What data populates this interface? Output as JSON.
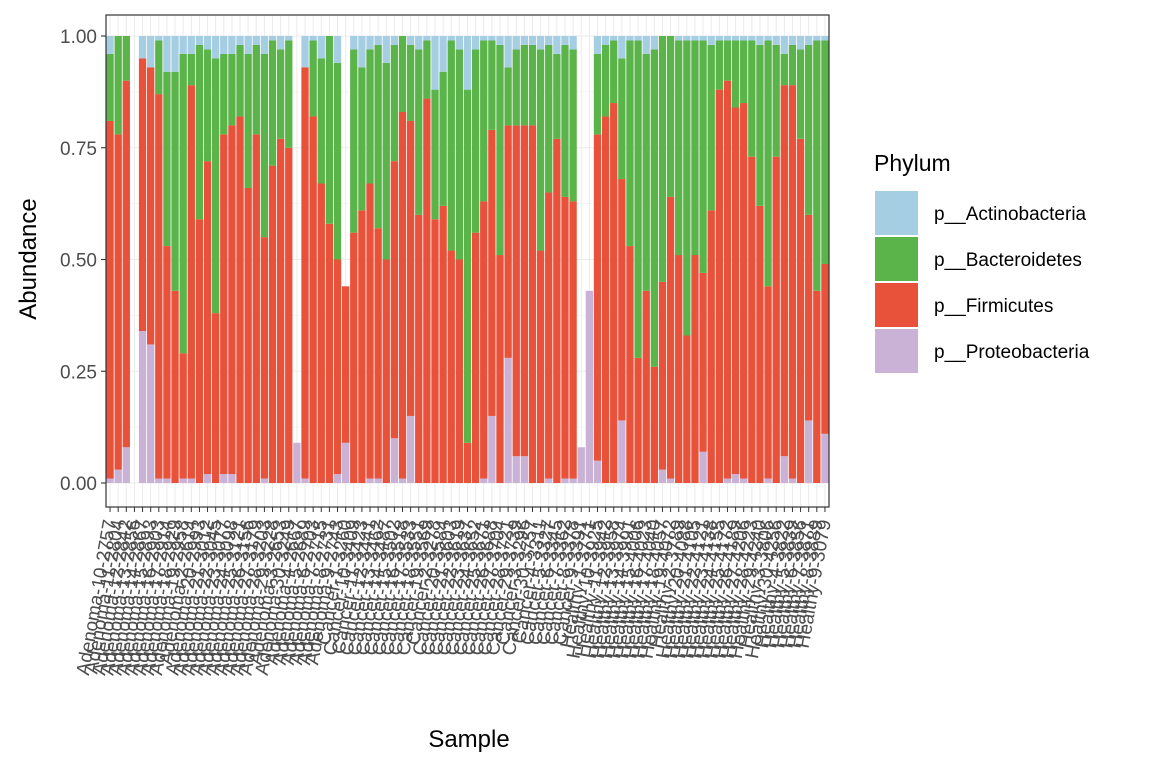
{
  "chart_data": {
    "type": "bar",
    "stacked": true,
    "xlabel": "Sample",
    "ylabel": "Abundance",
    "ylim": [
      0,
      1
    ],
    "yticks": [
      "0.00",
      "0.25",
      "0.50",
      "0.75",
      "1.00"
    ],
    "grid": true,
    "legend": {
      "title": "Phylum",
      "placement": "right",
      "entries": [
        "p__Actinobacteria",
        "p__Bacteroidetes",
        "p__Firmicutes",
        "p__Proteobacteria"
      ]
    },
    "colors": {
      "p__Actinobacteria": "#a6cee3",
      "p__Bacteroidetes": "#5bb44a",
      "p__Firmicutes": "#e8513a",
      "p__Proteobacteria": "#cab2d6"
    },
    "categories": [
      "Adenoma-10-2757",
      "Adenoma-11-2804",
      "Adenoma-12-2842",
      "Adenoma-13-2856",
      "Adenoma-14-2867",
      "Adenoma-15-2893",
      "Adenoma-16-2903",
      "Adenoma-17-2914",
      "Adenoma-18-2929",
      "Adenoma-19-2958",
      "Adenoma-2-2614",
      "Adenoma-20-2993",
      "Adenoma-21-3012",
      "Adenoma-22-3045",
      "Adenoma-23-3077",
      "Adenoma-24-3098",
      "Adenoma-25-3121",
      "Adenoma-26-3156",
      "Adenoma-27-3179",
      "Adenoma-28-3203",
      "Adenoma-29-3228",
      "Adenoma-3-2653",
      "Adenoma-30-3249",
      "Adenoma-4-2667",
      "Adenoma-5-2689",
      "Adenoma-6-2703",
      "Adenoma-7-2715",
      "Adenoma-8-2731",
      "Adenoma-9-2743",
      "Cancer-1-3260",
      "Cancer-10-3409",
      "Cancer-11-3423",
      "Cancer-12-3441",
      "Cancer-13-3462",
      "Cancer-14-3487",
      "Cancer-15-3502",
      "Cancer-16-3518",
      "Cancer-17-3533",
      "Cancer-18-3551",
      "Cancer-19-3569",
      "Cancer-2-3278",
      "Cancer-20-3584",
      "Cancer-21-3603",
      "Cancer-22-3619",
      "Cancer-23-3637",
      "Cancer-24-3652",
      "Cancer-25-3671",
      "Cancer-26-3688",
      "Cancer-27-3704",
      "Cancer-28-3721",
      "Cancer-29-3739",
      "Cancer-3-3296",
      "Cancer-30-3757",
      "Cancer-4-3311",
      "Cancer-5-3327",
      "Cancer-6-3345",
      "Cancer-7-3362",
      "Cancer-8-3378",
      "Cancer-9-3391",
      "Healthy-1-3771",
      "Healthy-10-3925",
      "Healthy-11-3942",
      "Healthy-12-3958",
      "Healthy-13-3974",
      "Healthy-14-3991",
      "Healthy-15-4006",
      "Healthy-16-4023",
      "Healthy-17-4040",
      "Healthy-18-4057",
      "Healthy-19-4072",
      "Healthy-2-3789",
      "Healthy-20-4088",
      "Healthy-21-4105",
      "Healthy-22-4121",
      "Healthy-23-4138",
      "Healthy-24-4155",
      "Healthy-25-4172",
      "Healthy-26-4189",
      "Healthy-27-4206",
      "Healthy-28-4223",
      "Healthy-29-4240",
      "Healthy-3-3806",
      "Healthy-30-4256",
      "Healthy-4-3822",
      "Healthy-5-3839",
      "Healthy-6-3856",
      "Healthy-7-3871",
      "Healthy-8-3889",
      "Healthy-9-3079"
    ],
    "series": [
      {
        "name": "p__Proteobacteria",
        "values": [
          0.01,
          0.03,
          0.08,
          0.0,
          0.34,
          0.31,
          0.01,
          0.01,
          0.0,
          0.01,
          0.01,
          0.0,
          0.02,
          0.0,
          0.02,
          0.02,
          0.0,
          0.0,
          0.0,
          0.01,
          0.0,
          0.0,
          0.0,
          0.09,
          0.01,
          0.0,
          0.0,
          0.0,
          0.02,
          0.09,
          0.0,
          0.0,
          0.01,
          0.01,
          0.0,
          0.1,
          0.01,
          0.15,
          0.0,
          0.0,
          0.0,
          0.0,
          0.0,
          0.0,
          0.0,
          0.0,
          0.01,
          0.15,
          0.0,
          0.28,
          0.06,
          0.06,
          0.0,
          0.0,
          0.01,
          0.0,
          0.01,
          0.01,
          0.08,
          0.43,
          0.05,
          0.0,
          0.0,
          0.14,
          0.0,
          0.0,
          0.0,
          0.0,
          0.03,
          0.01,
          0.0,
          0.0,
          0.0,
          0.07,
          0.0,
          0.0,
          0.01,
          0.02,
          0.01,
          0.0,
          0.0,
          0.01,
          0.0,
          0.06,
          0.01,
          0.0,
          0.14,
          0.0,
          0.11
        ]
      },
      {
        "name": "p__Firmicutes",
        "values": [
          0.8,
          0.75,
          0.82,
          0.0,
          0.61,
          0.62,
          0.86,
          0.52,
          0.43,
          0.28,
          0.88,
          0.59,
          0.7,
          0.38,
          0.76,
          0.78,
          0.82,
          0.66,
          0.78,
          0.54,
          0.71,
          0.77,
          0.75,
          0.0,
          0.92,
          0.82,
          0.67,
          0.58,
          0.48,
          0.35,
          0.56,
          0.61,
          0.66,
          0.56,
          0.5,
          0.62,
          0.82,
          0.66,
          0.6,
          0.86,
          0.59,
          0.62,
          0.52,
          0.5,
          0.09,
          0.56,
          0.62,
          0.64,
          0.51,
          0.52,
          0.74,
          0.74,
          0.8,
          0.52,
          0.64,
          0.77,
          0.63,
          0.62,
          0.0,
          0.0,
          0.73,
          0.82,
          0.85,
          0.54,
          0.53,
          0.28,
          0.43,
          0.26,
          0.42,
          0.63,
          0.51,
          0.33,
          0.51,
          0.4,
          0.61,
          0.88,
          0.89,
          0.82,
          0.84,
          0.73,
          0.62,
          0.43,
          0.73,
          0.83,
          0.88,
          0.77,
          0.46,
          0.43,
          0.38
        ]
      },
      {
        "name": "p__Bacteroidetes",
        "values": [
          0.15,
          0.22,
          0.1,
          0.0,
          0.0,
          0.0,
          0.12,
          0.39,
          0.49,
          0.67,
          0.07,
          0.39,
          0.25,
          0.57,
          0.18,
          0.16,
          0.16,
          0.3,
          0.2,
          0.41,
          0.28,
          0.2,
          0.24,
          0.0,
          0.0,
          0.17,
          0.28,
          0.42,
          0.44,
          0.0,
          0.41,
          0.32,
          0.3,
          0.41,
          0.44,
          0.26,
          0.17,
          0.17,
          0.37,
          0.13,
          0.29,
          0.3,
          0.47,
          0.47,
          0.79,
          0.41,
          0.36,
          0.2,
          0.47,
          0.13,
          0.17,
          0.18,
          0.18,
          0.45,
          0.33,
          0.19,
          0.34,
          0.34,
          0.0,
          0.0,
          0.18,
          0.16,
          0.14,
          0.27,
          0.46,
          0.71,
          0.53,
          0.71,
          0.56,
          0.36,
          0.48,
          0.66,
          0.48,
          0.52,
          0.37,
          0.11,
          0.09,
          0.15,
          0.14,
          0.26,
          0.36,
          0.55,
          0.25,
          0.07,
          0.09,
          0.2,
          0.38,
          0.56,
          0.5
        ]
      },
      {
        "name": "p__Actinobacteria",
        "values": [
          0.04,
          0.0,
          0.0,
          0.0,
          0.05,
          0.07,
          0.01,
          0.08,
          0.08,
          0.04,
          0.04,
          0.02,
          0.03,
          0.05,
          0.04,
          0.04,
          0.02,
          0.04,
          0.02,
          0.04,
          0.01,
          0.03,
          0.01,
          0.0,
          0.07,
          0.01,
          0.05,
          0.0,
          0.06,
          0.0,
          0.03,
          0.07,
          0.03,
          0.02,
          0.06,
          0.02,
          0.0,
          0.02,
          0.03,
          0.01,
          0.12,
          0.08,
          0.01,
          0.03,
          0.12,
          0.03,
          0.01,
          0.01,
          0.02,
          0.07,
          0.03,
          0.02,
          0.02,
          0.03,
          0.02,
          0.04,
          0.02,
          0.03,
          0.0,
          0.0,
          0.04,
          0.02,
          0.01,
          0.05,
          0.01,
          0.01,
          0.04,
          0.03,
          0.0,
          0.0,
          0.01,
          0.01,
          0.01,
          0.01,
          0.02,
          0.01,
          0.01,
          0.01,
          0.01,
          0.01,
          0.02,
          0.01,
          0.02,
          0.04,
          0.02,
          0.03,
          0.02,
          0.01,
          0.01
        ]
      }
    ]
  }
}
